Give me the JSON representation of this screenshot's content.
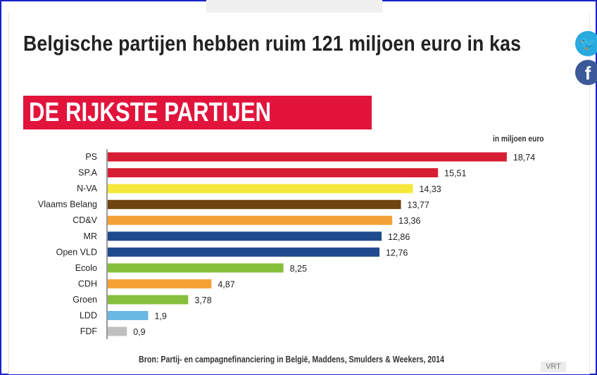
{
  "headline": "Belgische partijen hebben ruim 121 miljoen euro in kas",
  "banner": "DE RIJKSTE PARTIJEN",
  "unit_label": "in miljoen euro",
  "source": "Bron: Partij- en campagnefinanciering in België, Maddens, Smulders & Weekers, 2014",
  "watermark": "VRT",
  "social": {
    "twitter_glyph": "🐦",
    "facebook_glyph": "f"
  },
  "chart_data": {
    "type": "bar",
    "orientation": "horizontal",
    "title": "DE RIJKSTE PARTIJEN",
    "xlabel": "in miljoen euro",
    "ylabel": "",
    "xlim": [
      0,
      19
    ],
    "grid": false,
    "categories": [
      "PS",
      "SP.A",
      "N-VA",
      "Vlaams Belang",
      "CD&V",
      "MR",
      "Open VLD",
      "Ecolo",
      "CDH",
      "Groen",
      "LDD",
      "FDF"
    ],
    "values": [
      18.74,
      15.51,
      14.33,
      13.77,
      13.36,
      12.86,
      12.76,
      8.25,
      4.87,
      3.78,
      1.9,
      0.9
    ],
    "value_labels": [
      "18,74",
      "15,51",
      "14,33",
      "13,77",
      "13,36",
      "12,86",
      "12,76",
      "8,25",
      "4,87",
      "3,78",
      "1,9",
      "0,9"
    ],
    "colors": [
      "#d81e32",
      "#d81e32",
      "#f5e83a",
      "#6e4510",
      "#f4a236",
      "#1f4a8e",
      "#1f4a8e",
      "#86bf3c",
      "#f4a236",
      "#86bf3c",
      "#6ab8e4",
      "#c0c0c0"
    ]
  }
}
